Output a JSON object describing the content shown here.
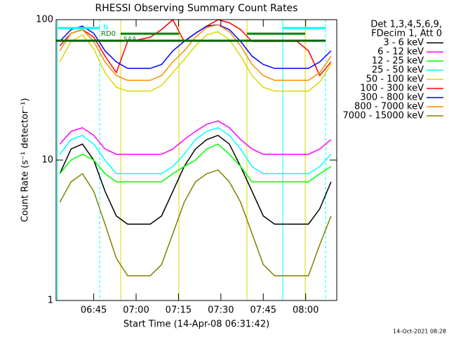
{
  "chart_data": {
    "type": "line",
    "title": "RHESSI Observing Summary Count Rates",
    "xlabel": "Start Time (14-Apr-08 06:31:42)",
    "ylabel": "Count Rate (s⁻¹ detector⁻¹)",
    "legend_header": [
      "Det 1,3,4,5,6,9,",
      "FDecim 1, Att 0"
    ],
    "annotations": [
      "N",
      "RD0",
      "SAA"
    ],
    "timestamp": "14-Oct-2021 08:28",
    "log_y": true,
    "legend": "right",
    "xlim": [
      "06:31:42",
      "08:11"
    ],
    "xticks": [
      "06:45",
      "07:00",
      "07:15",
      "07:30",
      "07:45",
      "08:00"
    ],
    "ylim": [
      1,
      100
    ],
    "yticks": [
      1,
      10,
      100
    ],
    "x": [
      "06:33",
      "06:37",
      "06:41",
      "06:45",
      "06:49",
      "06:53",
      "06:57",
      "07:01",
      "07:05",
      "07:09",
      "07:13",
      "07:17",
      "07:21",
      "07:25",
      "07:29",
      "07:33",
      "07:37",
      "07:41",
      "07:45",
      "07:49",
      "07:53",
      "07:57",
      "08:01",
      "08:05",
      "08:09"
    ],
    "series": [
      {
        "name": "3 - 6 keV",
        "color": "#000000",
        "values": [
          8,
          12,
          13,
          10,
          6,
          4,
          3.5,
          3.5,
          3.5,
          4,
          6,
          9,
          12,
          14,
          15,
          13,
          9,
          6,
          4,
          3.5,
          3.5,
          3.5,
          3.5,
          4.5,
          7
        ]
      },
      {
        "name": "6 - 12 keV",
        "color": "#ff00ff",
        "values": [
          13,
          16,
          17,
          15,
          12,
          11,
          11,
          11,
          11,
          11,
          12,
          14,
          16,
          18,
          19,
          17,
          14,
          12,
          11,
          11,
          11,
          11,
          11,
          12,
          14
        ]
      },
      {
        "name": "12 - 25 keV",
        "color": "#00ff00",
        "values": [
          8,
          10,
          11,
          10,
          8,
          7,
          7,
          7,
          7,
          7,
          8,
          9,
          10,
          12,
          13,
          11,
          9,
          7,
          7,
          7,
          7,
          7,
          7,
          8,
          9
        ]
      },
      {
        "name": "25 - 50 keV",
        "color": "#00ffff",
        "values": [
          11,
          14,
          15,
          13,
          10,
          8,
          8,
          8,
          8,
          8,
          9,
          11,
          14,
          16,
          17,
          15,
          12,
          9,
          8,
          8,
          8,
          8,
          8,
          9,
          11
        ]
      },
      {
        "name": "50 - 100 keV",
        "color": "#d8d800",
        "values": [
          50,
          70,
          78,
          62,
          42,
          33,
          31,
          31,
          31,
          34,
          42,
          52,
          65,
          78,
          82,
          72,
          55,
          40,
          33,
          31,
          31,
          31,
          31,
          36,
          48
        ]
      },
      {
        "name": "100 - 300 keV",
        "color": "#ff0000",
        "values": [
          65,
          80,
          85,
          75,
          55,
          42,
          70,
          72,
          75,
          85,
          100,
          70,
          80,
          90,
          100,
          95,
          85,
          70,
          70,
          70,
          70,
          70,
          60,
          40,
          50
        ]
      },
      {
        "name": "300 - 800 keV",
        "color": "#0000ff",
        "values": [
          70,
          85,
          90,
          80,
          60,
          50,
          45,
          45,
          45,
          48,
          60,
          70,
          80,
          90,
          92,
          85,
          70,
          55,
          48,
          45,
          45,
          45,
          45,
          50,
          60
        ]
      },
      {
        "name": "800 - 7000 keV",
        "color": "#ff8c00",
        "values": [
          60,
          80,
          85,
          70,
          50,
          40,
          37,
          37,
          37,
          40,
          50,
          60,
          75,
          88,
          92,
          82,
          65,
          48,
          40,
          37,
          37,
          37,
          37,
          42,
          55
        ]
      },
      {
        "name": "7000 - 15000 keV",
        "color": "#808000",
        "values": [
          5,
          7,
          8,
          6,
          3.5,
          2,
          1.5,
          1.5,
          1.5,
          1.8,
          3,
          5,
          7,
          8,
          8.5,
          7,
          5,
          3,
          1.8,
          1.5,
          1.5,
          1.5,
          1.5,
          2.5,
          4
        ]
      }
    ]
  }
}
